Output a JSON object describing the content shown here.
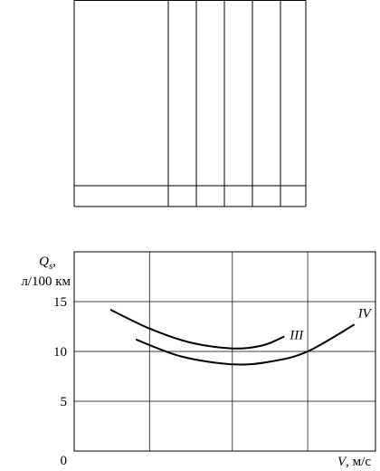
{
  "chart_data": {
    "type": "line",
    "ylabel_main": "Q",
    "ylabel_sub": "s",
    "ylabel_unit": "л/100 км",
    "xlabel_main": "V",
    "xlabel_unit": ", м/с",
    "xlim": [
      0,
      4
    ],
    "xticks": [
      1,
      2.1,
      3.1
    ],
    "ylim": [
      0,
      20
    ],
    "yticks": [
      0,
      5,
      10,
      15
    ],
    "grid": true,
    "series": [
      {
        "name": "III",
        "color": "#000000",
        "x": [
          0.48,
          1.0,
          1.54,
          2.11,
          2.5,
          2.79
        ],
        "values": [
          14.2,
          12.3,
          10.9,
          10.3,
          10.6,
          11.5
        ]
      },
      {
        "name": "IV",
        "color": "#000000",
        "x": [
          0.82,
          1.42,
          2.11,
          2.62,
          3.1,
          3.72
        ],
        "values": [
          11.2,
          9.5,
          8.7,
          9.0,
          10.0,
          12.7
        ]
      }
    ]
  }
}
